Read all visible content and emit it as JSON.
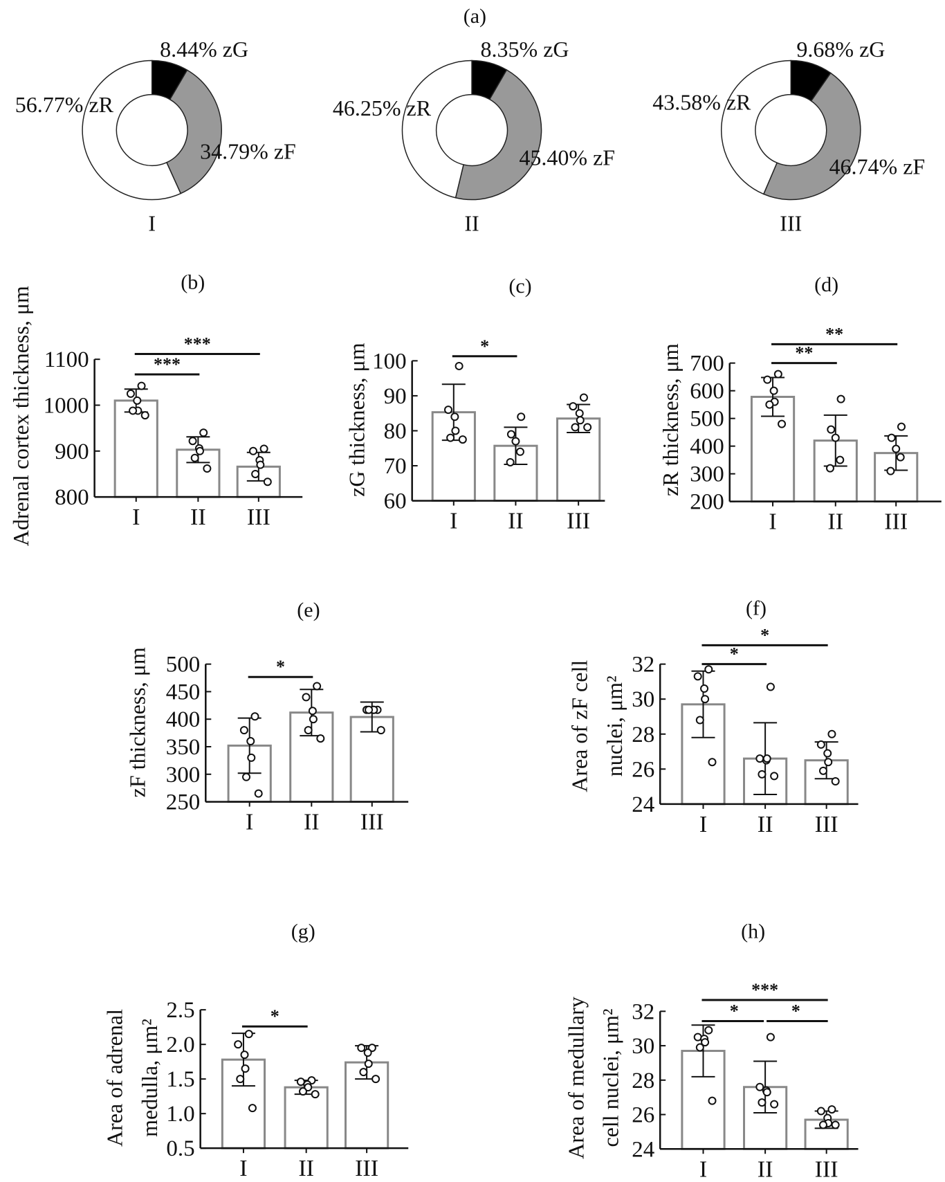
{
  "colors": {
    "zG": "#000000",
    "zF": "#999999",
    "zR": "#ffffff",
    "bar_stroke": "#888888",
    "ink": "#111111"
  },
  "chart_data": [
    {
      "panel": "(a)",
      "type": "pie",
      "donut": true,
      "pies": [
        {
          "group": "I",
          "slices": [
            {
              "name": "zG",
              "value": 8.44,
              "label": "8.44% zG"
            },
            {
              "name": "zF",
              "value": 34.79,
              "label": "34.79% zF"
            },
            {
              "name": "zR",
              "value": 56.77,
              "label": "56.77% zR"
            }
          ]
        },
        {
          "group": "II",
          "slices": [
            {
              "name": "zG",
              "value": 8.35,
              "label": "8.35% zG"
            },
            {
              "name": "zF",
              "value": 45.4,
              "label": "45.40% zF"
            },
            {
              "name": "zR",
              "value": 46.25,
              "label": "46.25% zR"
            }
          ]
        },
        {
          "group": "III",
          "slices": [
            {
              "name": "zG",
              "value": 9.68,
              "label": "9.68% zG"
            },
            {
              "name": "zF",
              "value": 46.74,
              "label": "46.74% zF"
            },
            {
              "name": "zR",
              "value": 43.58,
              "label": "43.58% zR"
            }
          ]
        }
      ]
    },
    {
      "panel": "(b)",
      "type": "bar",
      "ylabel": [
        "Adrenal cortex thickness, μm"
      ],
      "categories": [
        "I",
        "II",
        "III"
      ],
      "ylim": [
        800,
        1100
      ],
      "yticks": [
        800,
        900,
        1000,
        1100
      ],
      "values": [
        1010,
        903,
        866
      ],
      "sd": [
        25,
        28,
        31
      ],
      "points": [
        [
          1042,
          1025,
          1010,
          988,
          988,
          978
        ],
        [
          940,
          922,
          906,
          900,
          885,
          862
        ],
        [
          905,
          900,
          880,
          870,
          850,
          833
        ]
      ],
      "significance": [
        {
          "pair": [
            "I",
            "II"
          ],
          "label": "***"
        },
        {
          "pair": [
            "I",
            "III"
          ],
          "label": "***"
        }
      ]
    },
    {
      "panel": "(c)",
      "type": "bar",
      "ylabel": [
        "zG thickness, μm"
      ],
      "categories": [
        "I",
        "II",
        "III"
      ],
      "ylim": [
        60,
        100
      ],
      "yticks": [
        60,
        70,
        80,
        90,
        100
      ],
      "values": [
        85.3,
        75.7,
        83.5
      ],
      "sd": [
        8,
        5.3,
        4
      ],
      "points": [
        [
          98.5,
          86,
          84,
          80,
          78,
          77.5
        ],
        [
          84,
          79,
          77,
          74,
          71
        ],
        [
          89.5,
          87,
          85,
          83,
          81,
          81
        ]
      ],
      "significance": [
        {
          "pair": [
            "I",
            "II"
          ],
          "label": "*"
        }
      ]
    },
    {
      "panel": "(d)",
      "type": "bar",
      "ylabel": [
        "zR thickness, μm"
      ],
      "categories": [
        "I",
        "II",
        "III"
      ],
      "ylim": [
        200,
        700
      ],
      "yticks": [
        200,
        300,
        400,
        500,
        600,
        700
      ],
      "values": [
        578,
        420,
        375
      ],
      "sd": [
        70,
        92,
        62
      ],
      "points": [
        [
          660,
          640,
          600,
          560,
          550,
          480
        ],
        [
          570,
          460,
          430,
          350,
          320
        ],
        [
          470,
          430,
          390,
          360,
          310
        ]
      ],
      "significance": [
        {
          "pair": [
            "I",
            "II"
          ],
          "label": "**"
        },
        {
          "pair": [
            "I",
            "III"
          ],
          "label": "**"
        }
      ]
    },
    {
      "panel": "(e)",
      "type": "bar",
      "ylabel": [
        "zF thickness, μm"
      ],
      "categories": [
        "I",
        "II",
        "III"
      ],
      "ylim": [
        250,
        500
      ],
      "yticks": [
        250,
        300,
        350,
        400,
        450,
        500
      ],
      "values": [
        352,
        412,
        404
      ],
      "sd": [
        50,
        42,
        27
      ],
      "points": [
        [
          405,
          380,
          360,
          330,
          295,
          265
        ],
        [
          460,
          440,
          415,
          400,
          380,
          365
        ],
        [
          417,
          417,
          417,
          417,
          417,
          380
        ]
      ],
      "significance": [
        {
          "pair": [
            "I",
            "II"
          ],
          "label": "*"
        }
      ]
    },
    {
      "panel": "(f)",
      "type": "bar",
      "ylabel": [
        "Area of zF cell",
        "nuclei, μm²"
      ],
      "categories": [
        "I",
        "II",
        "III"
      ],
      "ylim": [
        24,
        32
      ],
      "yticks": [
        24,
        26,
        28,
        30,
        32
      ],
      "values": [
        29.7,
        26.6,
        26.5
      ],
      "sd": [
        1.9,
        2.05,
        1.05
      ],
      "points": [
        [
          31.7,
          31.3,
          30.6,
          30,
          28.8,
          26.4
        ],
        [
          30.7,
          26.6,
          26.5,
          26.6,
          25.7,
          25.6
        ],
        [
          28,
          27.4,
          26.9,
          26.4,
          25.9,
          25.3
        ]
      ],
      "significance": [
        {
          "pair": [
            "I",
            "II"
          ],
          "label": "*"
        },
        {
          "pair": [
            "I",
            "III"
          ],
          "label": "*"
        }
      ]
    },
    {
      "panel": "(g)",
      "type": "bar",
      "ylabel": [
        "Area of adrenal",
        "medulla, μm²"
      ],
      "categories": [
        "I",
        "II",
        "III"
      ],
      "ylim": [
        0.5,
        2.5
      ],
      "yticks": [
        "0.5",
        "1.0",
        "1.5",
        "2.0",
        "2.5"
      ],
      "values": [
        1.78,
        1.38,
        1.74
      ],
      "sd": [
        0.38,
        0.1,
        0.24
      ],
      "points": [
        [
          2.15,
          2.0,
          1.85,
          1.65,
          1.5,
          1.08
        ],
        [
          1.48,
          1.46,
          1.42,
          1.38,
          1.32,
          1.28
        ],
        [
          1.95,
          1.95,
          1.88,
          1.72,
          1.6,
          1.5
        ]
      ],
      "significance": [
        {
          "pair": [
            "I",
            "II"
          ],
          "label": "*"
        }
      ]
    },
    {
      "panel": "(h)",
      "type": "bar",
      "ylabel": [
        "Area of medullary",
        "cell nuclei, μm²"
      ],
      "categories": [
        "I",
        "II",
        "III"
      ],
      "ylim": [
        24,
        32
      ],
      "yticks": [
        24,
        26,
        28,
        30,
        32
      ],
      "values": [
        29.7,
        27.6,
        25.7
      ],
      "sd": [
        1.5,
        1.5,
        0.5
      ],
      "points": [
        [
          30.9,
          30.5,
          30.4,
          30.2,
          29.9,
          26.8
        ],
        [
          30.5,
          27.6,
          27.4,
          27.3,
          26.7,
          26.6
        ],
        [
          26.3,
          26.2,
          25.8,
          25.5,
          25.4,
          25.4
        ]
      ],
      "significance": [
        {
          "pair": [
            "I",
            "II"
          ],
          "label": "*"
        },
        {
          "pair": [
            "II",
            "III"
          ],
          "label": "*"
        },
        {
          "pair": [
            "I",
            "III"
          ],
          "label": "***"
        }
      ]
    }
  ]
}
